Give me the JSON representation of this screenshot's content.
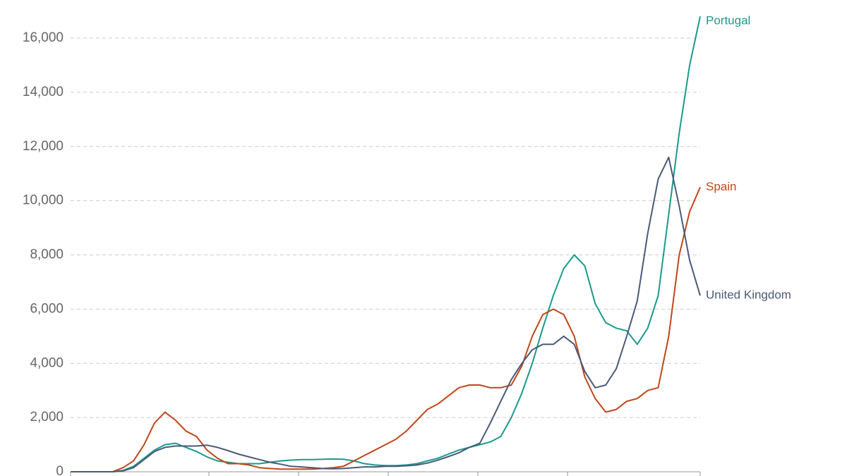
{
  "chart_data": {
    "type": "line",
    "ylim": [
      0,
      16000
    ],
    "yticks": [
      0,
      {
        "value": 2000,
        "label": "2,000"
      },
      {
        "value": 4000,
        "label": "4,000"
      },
      {
        "value": 6000,
        "label": "6,000"
      },
      {
        "value": 8000,
        "label": "8,000"
      },
      {
        "value": 10000,
        "label": "10,000"
      },
      {
        "value": 12000,
        "label": "12,000"
      },
      {
        "value": 14000,
        "label": "14,000"
      },
      {
        "value": 16000,
        "label": "16,000"
      }
    ],
    "grid": true,
    "series": [
      {
        "name": "Portugal",
        "color": "#1a9a8e",
        "values": [
          0,
          0,
          0,
          0,
          0,
          50,
          200,
          500,
          800,
          1000,
          1050,
          900,
          750,
          550,
          400,
          350,
          300,
          300,
          300,
          350,
          400,
          430,
          450,
          450,
          460,
          470,
          460,
          400,
          300,
          250,
          230,
          230,
          250,
          300,
          400,
          500,
          650,
          800,
          900,
          1000,
          1100,
          1300,
          2000,
          2900,
          4000,
          5300,
          6500,
          7500,
          8000,
          7600,
          6200,
          5500,
          5300,
          5200,
          4700,
          5300,
          6500,
          9500,
          12500,
          15000,
          16800
        ]
      },
      {
        "name": "Spain",
        "color": "#c0471a",
        "values": [
          0,
          0,
          0,
          0,
          0,
          150,
          400,
          1000,
          1800,
          2200,
          1900,
          1500,
          1300,
          800,
          500,
          300,
          300,
          250,
          150,
          120,
          100,
          100,
          100,
          100,
          120,
          150,
          200,
          400,
          600,
          800,
          1000,
          1200,
          1500,
          1900,
          2300,
          2500,
          2800,
          3100,
          3200,
          3200,
          3100,
          3100,
          3200,
          3900,
          5000,
          5800,
          6000,
          5800,
          5000,
          3500,
          2700,
          2200,
          2300,
          2600,
          2700,
          3000,
          3100,
          5000,
          8000,
          9600,
          10500
        ]
      },
      {
        "name": "United Kingdom",
        "color": "#4a5a78",
        "values": [
          0,
          0,
          0,
          0,
          0,
          30,
          150,
          450,
          750,
          900,
          950,
          950,
          950,
          980,
          900,
          780,
          650,
          550,
          450,
          350,
          280,
          200,
          180,
          150,
          120,
          110,
          120,
          150,
          180,
          180,
          200,
          200,
          220,
          250,
          320,
          430,
          560,
          700,
          900,
          1050,
          1800,
          2600,
          3400,
          4000,
          4500,
          4700,
          4700,
          5000,
          4700,
          3700,
          3100,
          3200,
          3800,
          5000,
          6300,
          8800,
          10800,
          11600,
          9800,
          7800,
          6500
        ]
      }
    ]
  }
}
